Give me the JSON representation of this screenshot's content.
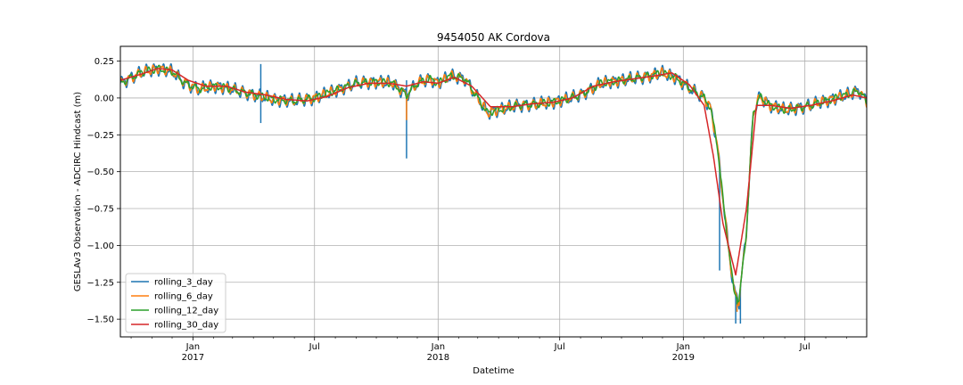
{
  "chart_data": {
    "type": "line",
    "title": "9454050 AK Cordova",
    "xlabel": "Datetime",
    "ylabel": "GESLAv3 Observation - ADCIRC Hindcast (m)",
    "x_range": [
      "2016-09-15",
      "2019-10-01"
    ],
    "ylim": [
      -1.62,
      0.35
    ],
    "grid": true,
    "legend_placement": "lower-left",
    "y_ticks": [
      {
        "value": 0.25,
        "label": "0.25"
      },
      {
        "value": 0.0,
        "label": "0.00"
      },
      {
        "value": -0.25,
        "label": "−0.25"
      },
      {
        "value": -0.5,
        "label": "−0.50"
      },
      {
        "value": -0.75,
        "label": "−0.75"
      },
      {
        "value": -1.0,
        "label": "−1.00"
      },
      {
        "value": -1.25,
        "label": "−1.25"
      },
      {
        "value": -1.5,
        "label": "−1.50"
      }
    ],
    "x_major_ticks": [
      {
        "date": "2017-01-01",
        "label": "Jan",
        "year": "2017"
      },
      {
        "date": "2017-07-01",
        "label": "Jul",
        "year": ""
      },
      {
        "date": "2018-01-01",
        "label": "Jan",
        "year": "2018"
      },
      {
        "date": "2018-07-01",
        "label": "Jul",
        "year": ""
      },
      {
        "date": "2019-01-01",
        "label": "Jan",
        "year": "2019"
      },
      {
        "date": "2019-07-01",
        "label": "Jul",
        "year": ""
      }
    ],
    "x_minor_ticks": [
      "2016-10-01",
      "2016-11-01",
      "2016-12-01",
      "2017-02-01",
      "2017-03-01",
      "2017-04-01",
      "2017-05-01",
      "2017-06-01",
      "2017-08-01",
      "2017-09-01",
      "2017-10-01",
      "2017-11-01",
      "2017-12-01",
      "2018-02-01",
      "2018-03-01",
      "2018-04-01",
      "2018-05-01",
      "2018-06-01",
      "2018-08-01",
      "2018-09-01",
      "2018-10-01",
      "2018-11-01",
      "2018-12-01",
      "2019-02-01",
      "2019-03-01",
      "2019-04-01",
      "2019-05-01",
      "2019-06-01",
      "2019-08-01",
      "2019-09-01"
    ],
    "series": [
      {
        "name": "rolling_3_day",
        "color": "#1f77b4",
        "width": 1.5,
        "noise": 0.035,
        "noise_period": 12,
        "spikes": [
          {
            "date": "2017-04-12",
            "values": [
              0.23,
              -0.17
            ]
          },
          {
            "date": "2017-11-15",
            "values": [
              0.12,
              -0.41
            ]
          },
          {
            "date": "2019-02-24",
            "values": [
              -1.17
            ]
          },
          {
            "date": "2019-03-20",
            "values": [
              -1.53
            ]
          },
          {
            "date": "2019-03-27",
            "values": [
              -1.53
            ]
          }
        ]
      },
      {
        "name": "rolling_6_day",
        "color": "#ff7f0e",
        "width": 1.5,
        "noise": 0.025,
        "noise_period": 12,
        "spikes": [
          {
            "date": "2017-11-15",
            "values": [
              -0.15
            ]
          },
          {
            "date": "2019-03-22",
            "values": [
              -1.45
            ]
          }
        ]
      },
      {
        "name": "rolling_12_day",
        "color": "#2ca02c",
        "width": 1.5,
        "noise": 0.018,
        "noise_period": 14,
        "spikes": [
          {
            "date": "2019-03-22",
            "values": [
              -1.4
            ]
          }
        ]
      },
      {
        "name": "rolling_30_day",
        "color": "#d62728",
        "width": 1.5,
        "noise": 0.0,
        "noise_period": 30,
        "spikes": []
      }
    ],
    "base_trend": [
      [
        "2016-09-15",
        0.1
      ],
      [
        "2016-10-15",
        0.17
      ],
      [
        "2016-11-10",
        0.2
      ],
      [
        "2016-12-01",
        0.18
      ],
      [
        "2016-12-20",
        0.1
      ],
      [
        "2017-01-10",
        0.06
      ],
      [
        "2017-02-01",
        0.08
      ],
      [
        "2017-02-20",
        0.07
      ],
      [
        "2017-03-15",
        0.04
      ],
      [
        "2017-04-05",
        0.02
      ],
      [
        "2017-05-01",
        -0.01
      ],
      [
        "2017-06-01",
        -0.02
      ],
      [
        "2017-07-01",
        0.0
      ],
      [
        "2017-08-01",
        0.05
      ],
      [
        "2017-09-01",
        0.1
      ],
      [
        "2017-10-01",
        0.11
      ],
      [
        "2017-10-25",
        0.1
      ],
      [
        "2017-11-15",
        0.02
      ],
      [
        "2017-12-01",
        0.1
      ],
      [
        "2017-12-20",
        0.13
      ],
      [
        "2018-01-01",
        0.1
      ],
      [
        "2018-01-20",
        0.15
      ],
      [
        "2018-02-10",
        0.13
      ],
      [
        "2018-03-01",
        0.0
      ],
      [
        "2018-03-15",
        -0.1
      ],
      [
        "2018-04-01",
        -0.08
      ],
      [
        "2018-05-01",
        -0.05
      ],
      [
        "2018-06-01",
        -0.04
      ],
      [
        "2018-07-01",
        -0.02
      ],
      [
        "2018-08-01",
        0.02
      ],
      [
        "2018-09-01",
        0.1
      ],
      [
        "2018-10-01",
        0.12
      ],
      [
        "2018-11-01",
        0.14
      ],
      [
        "2018-12-01",
        0.17
      ],
      [
        "2018-12-20",
        0.14
      ],
      [
        "2019-01-15",
        0.05
      ],
      [
        "2019-02-01",
        0.0
      ],
      [
        "2019-02-10",
        -0.06
      ],
      [
        "2019-02-20",
        -0.3
      ],
      [
        "2019-03-05",
        -0.85
      ],
      [
        "2019-03-17",
        -1.3
      ],
      [
        "2019-03-25",
        -1.38
      ],
      [
        "2019-04-05",
        -0.9
      ],
      [
        "2019-04-15",
        -0.1
      ],
      [
        "2019-04-25",
        0.01
      ],
      [
        "2019-05-10",
        -0.05
      ],
      [
        "2019-06-01",
        -0.08
      ],
      [
        "2019-07-01",
        -0.06
      ],
      [
        "2019-08-01",
        -0.02
      ],
      [
        "2019-09-01",
        0.02
      ],
      [
        "2019-09-20",
        0.05
      ],
      [
        "2019-10-01",
        -0.03
      ]
    ],
    "rolling_30_day_values": [
      [
        "2016-09-15",
        0.12
      ],
      [
        "2016-10-15",
        0.16
      ],
      [
        "2016-11-10",
        0.2
      ],
      [
        "2016-12-01",
        0.19
      ],
      [
        "2016-12-25",
        0.12
      ],
      [
        "2017-01-20",
        0.08
      ],
      [
        "2017-02-20",
        0.08
      ],
      [
        "2017-03-20",
        0.04
      ],
      [
        "2017-04-20",
        0.02
      ],
      [
        "2017-05-20",
        -0.01
      ],
      [
        "2017-06-20",
        -0.02
      ],
      [
        "2017-07-20",
        0.01
      ],
      [
        "2017-08-20",
        0.07
      ],
      [
        "2017-09-20",
        0.1
      ],
      [
        "2017-10-20",
        0.1
      ],
      [
        "2017-11-15",
        0.08
      ],
      [
        "2017-12-10",
        0.11
      ],
      [
        "2018-01-01",
        0.1
      ],
      [
        "2018-01-25",
        0.14
      ],
      [
        "2018-02-20",
        0.08
      ],
      [
        "2018-03-20",
        -0.06
      ],
      [
        "2018-04-20",
        -0.06
      ],
      [
        "2018-05-20",
        -0.04
      ],
      [
        "2018-06-20",
        -0.03
      ],
      [
        "2018-07-20",
        0.0
      ],
      [
        "2018-08-20",
        0.08
      ],
      [
        "2018-09-20",
        0.11
      ],
      [
        "2018-10-20",
        0.13
      ],
      [
        "2018-11-20",
        0.15
      ],
      [
        "2018-12-15",
        0.17
      ],
      [
        "2019-01-10",
        0.09
      ],
      [
        "2019-02-01",
        -0.05
      ],
      [
        "2019-02-15",
        -0.4
      ],
      [
        "2019-03-01",
        -0.85
      ],
      [
        "2019-03-20",
        -1.2
      ],
      [
        "2019-04-05",
        -0.75
      ],
      [
        "2019-04-20",
        -0.05
      ],
      [
        "2019-05-10",
        -0.05
      ],
      [
        "2019-06-10",
        -0.07
      ],
      [
        "2019-07-10",
        -0.05
      ],
      [
        "2019-08-10",
        -0.02
      ],
      [
        "2019-09-10",
        0.02
      ],
      [
        "2019-10-01",
        0.0
      ]
    ]
  }
}
